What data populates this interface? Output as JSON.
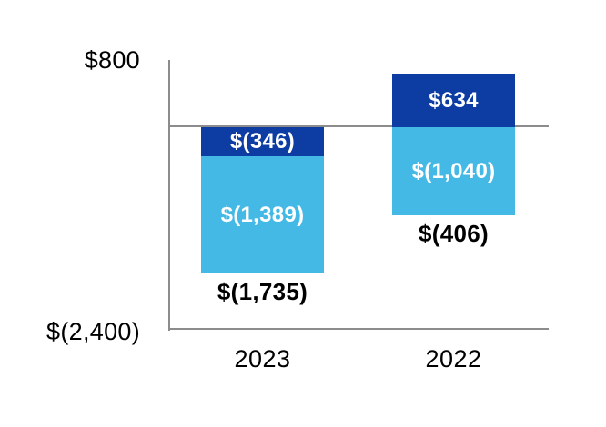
{
  "chart_data": {
    "type": "bar",
    "stacked": true,
    "orientation": "vertical",
    "title": "",
    "xlabel": "",
    "ylabel": "",
    "categories": [
      "2023",
      "2022"
    ],
    "series": [
      {
        "name": "dark-blue-segment",
        "color": "#0D3CA3",
        "values": [
          -346,
          634
        ],
        "labels": [
          "$(346)",
          "$634"
        ]
      },
      {
        "name": "light-blue-segment",
        "color": "#45B9E6",
        "values": [
          -1389,
          -1040
        ],
        "labels": [
          "$(1,389)",
          "$(1,040)"
        ]
      }
    ],
    "totals": {
      "values": [
        -1735,
        -406
      ],
      "labels": [
        "$(1,735)",
        "$(406)"
      ]
    },
    "y_axis": {
      "max": 800,
      "min": -2400,
      "top_label": "$800",
      "bottom_label": "$(2,400)",
      "gridlines": false
    },
    "zero_line": true,
    "legend": "none",
    "colors": {
      "axis_line": "#8C8C8C",
      "in_bar_text": "#FFFFFF",
      "outside_text": "#000000",
      "background": "#FFFFFF"
    }
  }
}
